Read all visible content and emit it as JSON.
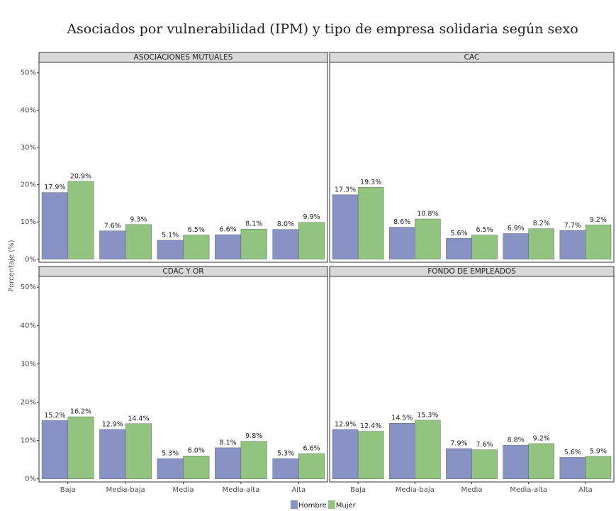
{
  "chart_data": {
    "type": "bar",
    "title": "Asociados por vulnerabilidad (IPM) y tipo de empresa solidaria según sexo",
    "y_label": "Porcentaje (%)",
    "categories": [
      "Baja",
      "Media-baja",
      "Media",
      "Media-alta",
      "Alta"
    ],
    "ylim": [
      -0.8,
      52.8
    ],
    "yticks": [
      {
        "value": 0,
        "label": "0%"
      },
      {
        "value": 10,
        "label": "10%"
      },
      {
        "value": 20,
        "label": "20%"
      },
      {
        "value": 30,
        "label": "30%"
      },
      {
        "value": 40,
        "label": "40%"
      },
      {
        "value": 50,
        "label": "50%"
      }
    ],
    "legend": "bottom",
    "series": [
      {
        "name": "Hombre",
        "color": "#8892c4"
      },
      {
        "name": "Mujer",
        "color": "#91c47f"
      }
    ],
    "facets": [
      {
        "title": "ASOCIACIONES MUTUALES",
        "values": [
          [
            17.9,
            7.6,
            5.1,
            6.6,
            8.0
          ],
          [
            20.9,
            9.3,
            6.5,
            8.1,
            9.9
          ]
        ],
        "value_labels": [
          [
            "17.9%",
            "7.6%",
            "5.1%",
            "6.6%",
            "8.0%"
          ],
          [
            "20.9%",
            "9.3%",
            "6.5%",
            "8.1%",
            "9.9%"
          ]
        ]
      },
      {
        "title": "CAC",
        "values": [
          [
            17.3,
            8.6,
            5.6,
            6.9,
            7.7
          ],
          [
            19.3,
            10.8,
            6.5,
            8.2,
            9.2
          ]
        ],
        "value_labels": [
          [
            "17.3%",
            "8.6%",
            "5.6%",
            "6.9%",
            "7.7%"
          ],
          [
            "19.3%",
            "10.8%",
            "6.5%",
            "8.2%",
            "9.2%"
          ]
        ]
      },
      {
        "title": "CDAC Y OR",
        "values": [
          [
            15.2,
            12.9,
            5.3,
            8.1,
            5.3
          ],
          [
            16.2,
            14.4,
            6.0,
            9.8,
            6.6
          ]
        ],
        "value_labels": [
          [
            "15.2%",
            "12.9%",
            "5.3%",
            "8.1%",
            "5.3%"
          ],
          [
            "16.2%",
            "14.4%",
            "6.0%",
            "9.8%",
            "6.6%"
          ]
        ]
      },
      {
        "title": "FONDO DE EMPLEADOS",
        "values": [
          [
            12.9,
            14.5,
            7.9,
            8.8,
            5.6
          ],
          [
            12.4,
            15.3,
            7.6,
            9.2,
            5.9
          ]
        ],
        "value_labels": [
          [
            "12.9%",
            "14.5%",
            "7.9%",
            "8.8%",
            "5.6%"
          ],
          [
            "12.4%",
            "15.3%",
            "7.6%",
            "9.2%",
            "5.9%"
          ]
        ]
      }
    ]
  }
}
